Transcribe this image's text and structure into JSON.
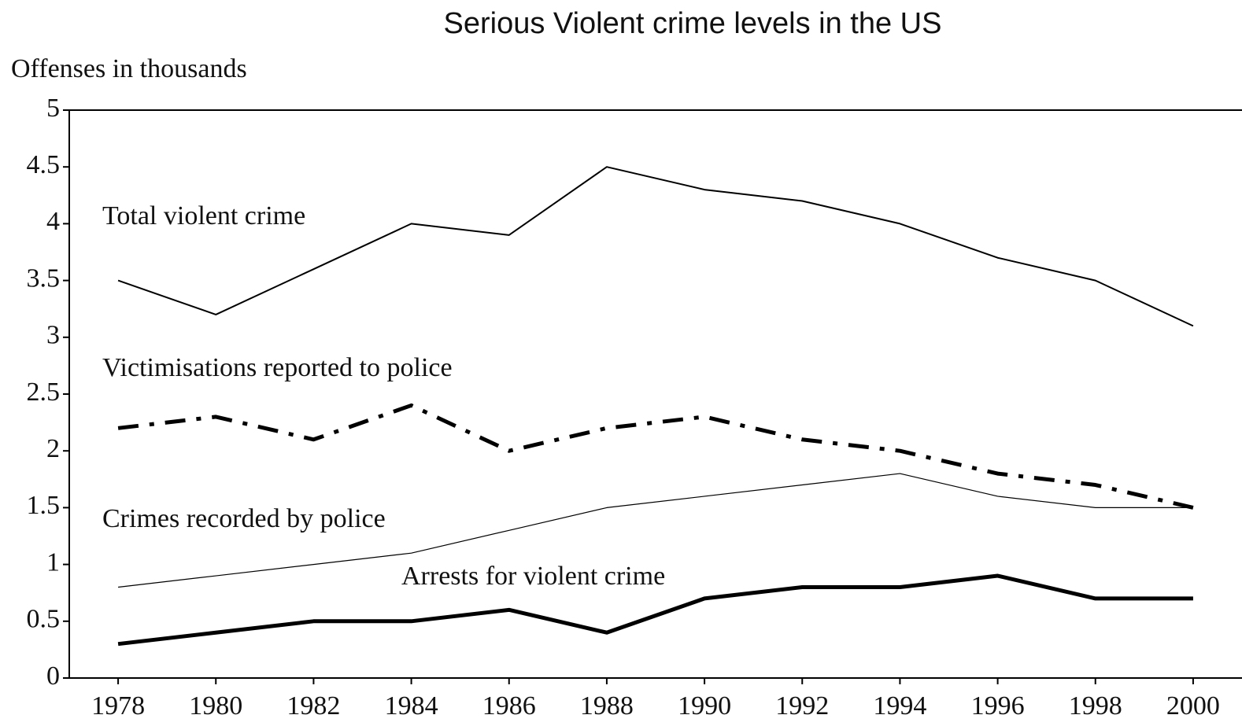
{
  "chart_data": {
    "type": "line",
    "title": "Serious Violent crime levels in the US",
    "y_label": "Offenses in thousands",
    "x": [
      1978,
      1980,
      1982,
      1984,
      1986,
      1988,
      1990,
      1992,
      1994,
      1996,
      1998,
      2000
    ],
    "xlim": [
      1977,
      2001
    ],
    "xticks": [
      1978,
      1980,
      1982,
      1984,
      1986,
      1988,
      1990,
      1992,
      1994,
      1996,
      1998,
      2000
    ],
    "ylim": [
      0,
      5
    ],
    "yticks": [
      0,
      0.5,
      1,
      1.5,
      2,
      2.5,
      3,
      3.5,
      4,
      4.5,
      5
    ],
    "series": [
      {
        "name": "Total violent crime",
        "color": "#000000",
        "style": "solid",
        "width": 2,
        "values": [
          3.5,
          3.2,
          3.6,
          4.0,
          3.9,
          4.5,
          4.3,
          4.2,
          4.0,
          3.7,
          3.5,
          3.1
        ]
      },
      {
        "name": "Victimisations reported to police",
        "color": "#000000",
        "style": "dashdot",
        "width": 5,
        "values": [
          2.2,
          2.3,
          2.1,
          2.4,
          2.0,
          2.2,
          2.3,
          2.1,
          2.0,
          1.8,
          1.7,
          1.5
        ]
      },
      {
        "name": "Crimes recorded by police",
        "color": "#000000",
        "style": "solid",
        "width": 1.2,
        "values": [
          0.8,
          0.9,
          1.0,
          1.1,
          1.3,
          1.5,
          1.6,
          1.7,
          1.8,
          1.6,
          1.5,
          1.5
        ]
      },
      {
        "name": "Arrests for violent crime",
        "color": "#000000",
        "style": "solid",
        "width": 5,
        "values": [
          0.3,
          0.4,
          0.5,
          0.5,
          0.6,
          0.4,
          0.7,
          0.8,
          0.8,
          0.9,
          0.7,
          0.7
        ]
      }
    ]
  }
}
